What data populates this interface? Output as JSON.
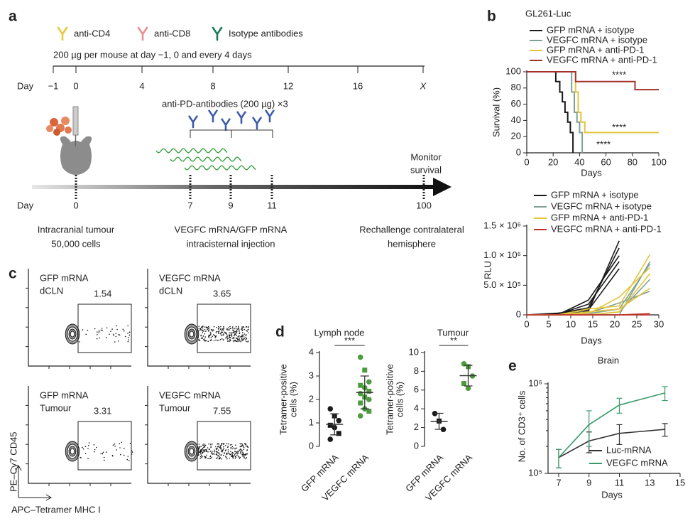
{
  "panel_a": {
    "label": "a",
    "legend": [
      "anti-CD4",
      "anti-CD8",
      "Isotype antibodies"
    ],
    "dose": "200 µg per mouse at day −1, 0 and every 4 days",
    "day_label": "Day",
    "top_ticks": [
      "−1",
      "0",
      "4",
      "8",
      "12",
      "16",
      "X"
    ],
    "pd_label": "anti-PD-antibodies (200 µg) ×3",
    "bottom_ticks": [
      "0",
      "7",
      "9",
      "11",
      "100"
    ],
    "monitor": [
      "Monitor",
      "survival"
    ],
    "notes": [
      [
        "Intracranial tumour",
        "50,000 cells"
      ],
      [
        "VEGFC mRNA/GFP mRNA",
        "intracisternal injection"
      ],
      [
        "Rechallenge contralateral",
        "hemisphere"
      ]
    ]
  },
  "panel_labels": {
    "b": "b",
    "c": "c",
    "d": "d",
    "e": "e"
  },
  "panel_c": {
    "plots": [
      {
        "lines": [
          "GFP mRNA",
          "dCLN"
        ],
        "gate": 1.54
      },
      {
        "lines": [
          "VEGFC mRNA",
          "dCLN"
        ],
        "gate": 3.65
      },
      {
        "lines": [
          "GFP mRNA",
          "Tumour"
        ],
        "gate": 3.31
      },
      {
        "lines": [
          "VEGFC mRNA",
          "Tumour"
        ],
        "gate": 7.55
      }
    ],
    "y_axis": "PE–Cy7 CD45",
    "x_axis": "APC–Tetramer MHC I"
  },
  "chart_data": [
    {
      "type": "step",
      "title": "GL261-Luc",
      "xlabel": "Days",
      "ylabel": "Survival (%)",
      "xlim": [
        0,
        100
      ],
      "xticks": [
        0,
        20,
        40,
        60,
        80,
        100
      ],
      "ylim": [
        0,
        100
      ],
      "yticks": [
        0,
        20,
        40,
        60,
        80,
        100
      ],
      "series": [
        {
          "name": "GFP mRNA + isotype",
          "color": "#1a1a1a",
          "x": [
            0,
            22,
            25,
            27,
            29,
            31,
            33,
            35
          ],
          "values": [
            100,
            88,
            75,
            63,
            50,
            38,
            25,
            0
          ]
        },
        {
          "name": "VEGFC mRNA + isotype",
          "color": "#7fa393",
          "x": [
            0,
            34,
            36,
            38,
            40,
            42
          ],
          "values": [
            100,
            75,
            50,
            38,
            25,
            0
          ]
        },
        {
          "name": "GFP mRNA + anti-PD-1",
          "color": "#e3c43a",
          "x": [
            0,
            37,
            39,
            41,
            44,
            100
          ],
          "values": [
            100,
            75,
            50,
            38,
            25,
            25
          ]
        },
        {
          "name": "VEGFC mRNA + anti-PD-1",
          "color": "#a3302b",
          "x": [
            0,
            37,
            82,
            100
          ],
          "values": [
            100,
            88,
            78,
            78
          ]
        }
      ],
      "annotations": [
        "****",
        "****",
        "****"
      ]
    },
    {
      "type": "line",
      "xlabel": "Days",
      "ylabel": "RLU",
      "xlim": [
        0,
        30
      ],
      "xticks": [
        0,
        5,
        10,
        15,
        20,
        25,
        30
      ],
      "ylim": [
        0,
        1500000
      ],
      "yticks": [
        0,
        {
          "value": 500000,
          "label": "5.0 × 10⁵"
        },
        {
          "value": 1000000,
          "label": "1.0 × 10⁶"
        },
        {
          "value": 1500000,
          "label": "1.5 × 10⁶"
        }
      ],
      "series": [
        {
          "name": "GFP mRNA + isotype",
          "color": "#1a1a1a",
          "x": [
            0,
            7,
            14,
            21
          ],
          "traces": [
            [
              0,
              0,
              60000,
              1250000
            ],
            [
              0,
              20000,
              120000,
              1130000
            ],
            [
              0,
              10000,
              180000,
              900000
            ],
            [
              0,
              0,
              250000,
              1000000
            ],
            [
              0,
              30000,
              80000,
              780000
            ]
          ]
        },
        {
          "name": "VEGFC mRNA + isotype",
          "color": "#7fa393",
          "x": [
            0,
            7,
            14,
            21,
            28
          ],
          "traces": [
            [
              0,
              0,
              10000,
              0,
              900000
            ],
            [
              0,
              0,
              20000,
              100000,
              860000
            ],
            [
              0,
              0,
              0,
              50000,
              600000
            ],
            [
              0,
              0,
              30000,
              200000,
              400000
            ]
          ]
        },
        {
          "name": "GFP mRNA + anti-PD-1",
          "color": "#e3c43a",
          "x": [
            0,
            7,
            14,
            21,
            28
          ],
          "traces": [
            [
              0,
              0,
              100000,
              150000,
              1020000
            ],
            [
              0,
              0,
              20000,
              300000,
              800000
            ],
            [
              0,
              0,
              50000,
              100000,
              450000
            ],
            [
              0,
              0,
              0,
              50000,
              700000
            ]
          ]
        },
        {
          "name": "VEGFC mRNA + anti-PD-1",
          "color": "#c0302a",
          "x": [
            0,
            7,
            14,
            21,
            28
          ],
          "traces": [
            [
              0,
              0,
              0,
              0,
              0
            ],
            [
              0,
              0,
              0,
              0,
              20000
            ]
          ]
        }
      ]
    },
    {
      "type": "strip",
      "title": "Lymph node",
      "ylabel": [
        "Tetramer-positive",
        "cells (%)"
      ],
      "ylim": [
        0,
        4
      ],
      "yticks": [
        0,
        1,
        2,
        3,
        4
      ],
      "significance": "***",
      "groups": [
        {
          "category": "GFP mRNA",
          "color": "#1a1a1a",
          "values": [
            1.6,
            1.3,
            1.1,
            0.9,
            0.8,
            0.55,
            0.3
          ],
          "mean": 0.94,
          "sd": 0.45
        },
        {
          "category": "VEGFC mRNA",
          "color": "#4e9a3e",
          "values": [
            3.8,
            3.25,
            2.75,
            2.6,
            2.5,
            2.35,
            2.25,
            2.1,
            2.0,
            1.85,
            1.6,
            1.5,
            1.3
          ],
          "mean": 2.3,
          "sd": 0.7
        }
      ]
    },
    {
      "type": "strip",
      "title": "Tumour",
      "ylabel": [
        "Tetramer-positive",
        "cells (%)"
      ],
      "ylim": [
        0,
        10
      ],
      "yticks": [
        0,
        2,
        4,
        6,
        8,
        10
      ],
      "significance": "**",
      "groups": [
        {
          "category": "GFP mRNA",
          "color": "#1a1a1a",
          "values": [
            3.5,
            2.7,
            1.8
          ],
          "mean": 2.67,
          "sd": 0.85
        },
        {
          "category": "VEGFC mRNA",
          "color": "#4e9a3e",
          "values": [
            8.8,
            8.5,
            7.5,
            6.7,
            6.2
          ],
          "mean": 7.54,
          "sd": 1.1
        }
      ]
    },
    {
      "type": "line",
      "log_y": true,
      "title": "Brain",
      "xlabel": "Days",
      "ylabel": "No. of CD3⁺ cells",
      "xlim": [
        6.3,
        15
      ],
      "xticks": [
        7,
        9,
        11,
        13,
        15
      ],
      "ylim": [
        100000,
        1000000
      ],
      "yticks": [
        {
          "value": 100000,
          "label": "10⁵"
        },
        {
          "value": 1000000,
          "label": "10⁶"
        }
      ],
      "series": [
        {
          "name": "Luc-mRNA",
          "color": "#333333",
          "x": [
            7,
            9,
            11,
            14
          ],
          "values": [
            150000,
            230000,
            280000,
            310000
          ],
          "errors": [
            35000,
            60000,
            70000,
            50000
          ]
        },
        {
          "name": "VEGFC mRNA",
          "color": "#3a9a6a",
          "x": [
            7,
            9,
            11,
            14
          ],
          "values": [
            150000,
            350000,
            580000,
            790000
          ],
          "errors": [
            35000,
            150000,
            110000,
            140000
          ]
        }
      ]
    }
  ]
}
